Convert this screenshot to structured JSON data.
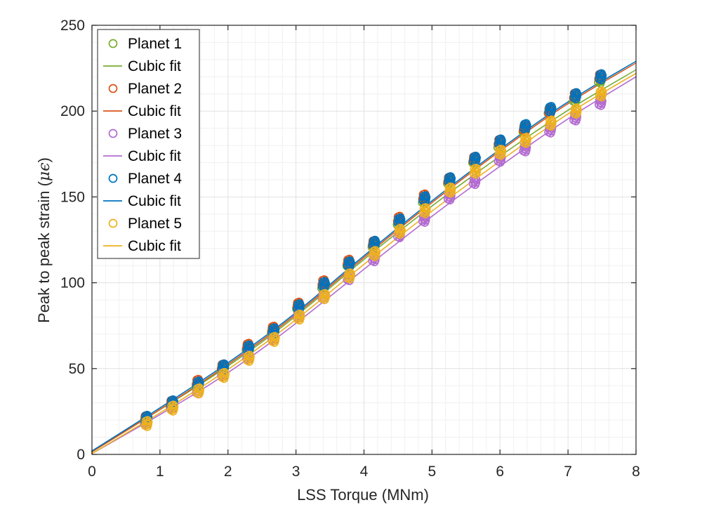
{
  "chart_data": {
    "type": "scatter",
    "title": "",
    "xlabel": "LSS Torque (MNm)",
    "ylabel_prefix": "Peak to peak strain (",
    "ylabel_symbol": "μϵ",
    "ylabel_suffix": ")",
    "xlim": [
      0,
      8
    ],
    "ylim": [
      0,
      250
    ],
    "x_ticks": [
      0,
      1,
      2,
      3,
      4,
      5,
      6,
      7,
      8
    ],
    "y_ticks": [
      0,
      50,
      100,
      150,
      200,
      250
    ],
    "x_tick_labels": [
      "0",
      "1",
      "2",
      "3",
      "4",
      "5",
      "6",
      "7",
      "8"
    ],
    "y_tick_labels": [
      "0",
      "50",
      "100",
      "150",
      "200",
      "250"
    ],
    "minor_x_ticks": [
      0.2,
      0.4,
      0.6,
      0.8,
      1.2,
      1.4,
      1.6,
      1.8,
      2.2,
      2.4,
      2.6,
      2.8,
      3.2,
      3.4,
      3.6,
      3.8,
      4.2,
      4.4,
      4.6,
      4.8,
      5.2,
      5.4,
      5.6,
      5.8,
      6.2,
      6.4,
      6.6,
      6.8,
      7.2,
      7.4,
      7.6,
      7.8
    ],
    "minor_y_ticks": [
      10,
      20,
      30,
      40,
      60,
      70,
      80,
      90,
      110,
      120,
      130,
      140,
      160,
      170,
      180,
      190,
      210,
      220,
      230,
      240
    ],
    "grid": true,
    "legend_position": "top-left",
    "marker": "open-circle",
    "torque_levels": [
      0.8,
      1.18,
      1.56,
      1.93,
      2.3,
      2.67,
      3.04,
      3.41,
      3.78,
      4.15,
      4.52,
      4.89,
      5.26,
      5.63,
      6.0,
      6.37,
      6.74,
      7.11,
      7.48
    ],
    "series": [
      {
        "name": "Planet 1",
        "fit_name": "Cubic fit",
        "color": "#77AC30",
        "values": [
          20,
          29,
          40,
          50,
          62,
          72,
          86,
          98,
          111,
          122,
          135,
          148,
          159,
          171,
          180,
          189,
          200,
          207,
          218
        ],
        "fit": [
          [
            0,
            1.5
          ],
          [
            1,
            26
          ],
          [
            2,
            51
          ],
          [
            3,
            80
          ],
          [
            4,
            114
          ],
          [
            5,
            145
          ],
          [
            6,
            174
          ],
          [
            7,
            201
          ],
          [
            8,
            224
          ]
        ]
      },
      {
        "name": "Planet 2",
        "fit_name": "Cubic fit",
        "color": "#D95319",
        "values": [
          21,
          30,
          42,
          51,
          63,
          73,
          87,
          100,
          112,
          123,
          137,
          150,
          160,
          172,
          182,
          190,
          200,
          209,
          220
        ],
        "fit": [
          [
            0,
            1.5
          ],
          [
            1,
            26
          ],
          [
            2,
            52
          ],
          [
            3,
            81
          ],
          [
            4,
            115
          ],
          [
            5,
            147
          ],
          [
            6,
            177
          ],
          [
            7,
            205
          ],
          [
            8,
            228
          ]
        ]
      },
      {
        "name": "Planet 3",
        "fit_name": "Cubic fit",
        "color": "#B36BD1",
        "values": [
          19,
          28,
          37,
          47,
          57,
          68,
          81,
          92,
          103,
          114,
          128,
          137,
          150,
          159,
          172,
          178,
          189,
          196,
          205
        ],
        "fit": [
          [
            0,
            0.5
          ],
          [
            1,
            23
          ],
          [
            2,
            47
          ],
          [
            3,
            76
          ],
          [
            4,
            108
          ],
          [
            5,
            139
          ],
          [
            6,
            168
          ],
          [
            7,
            196
          ],
          [
            8,
            220
          ]
        ]
      },
      {
        "name": "Planet 4",
        "fit_name": "Cubic fit",
        "color": "#0072BD",
        "values": [
          21,
          30,
          41,
          51,
          62,
          72,
          86,
          99,
          111,
          123,
          136,
          149,
          160,
          172,
          182,
          191,
          201,
          209,
          220
        ],
        "fit": [
          [
            0,
            2
          ],
          [
            1,
            27
          ],
          [
            2,
            53
          ],
          [
            3,
            82
          ],
          [
            4,
            116
          ],
          [
            5,
            148
          ],
          [
            6,
            178
          ],
          [
            7,
            206
          ],
          [
            8,
            229
          ]
        ]
      },
      {
        "name": "Planet 5",
        "fit_name": "Cubic fit",
        "color": "#EDB120",
        "values": [
          18,
          27,
          37,
          46,
          56,
          67,
          80,
          92,
          104,
          117,
          130,
          142,
          154,
          165,
          176,
          183,
          193,
          200,
          210
        ],
        "fit": [
          [
            0,
            0.5
          ],
          [
            1,
            24
          ],
          [
            2,
            49
          ],
          [
            3,
            78
          ],
          [
            4,
            111
          ],
          [
            5,
            142
          ],
          [
            6,
            171
          ],
          [
            7,
            199
          ],
          [
            8,
            222
          ]
        ]
      }
    ]
  }
}
